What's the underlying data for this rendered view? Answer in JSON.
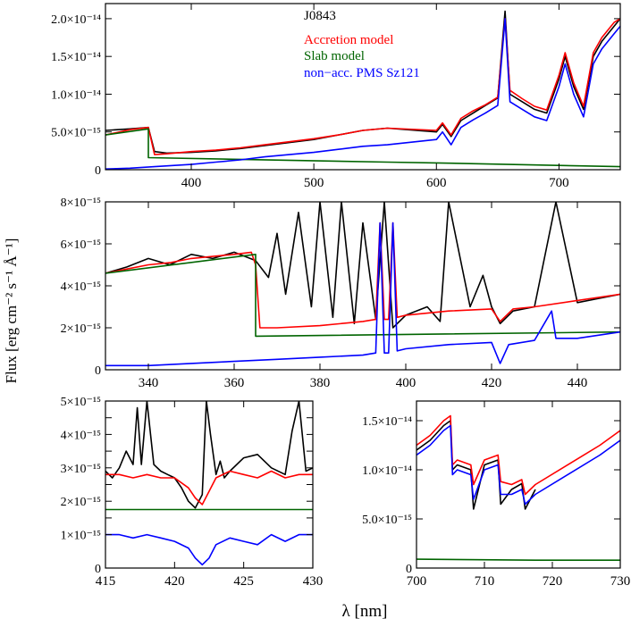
{
  "figure": {
    "ylabel": "Flux [erg cm⁻² s⁻¹ Å⁻¹]",
    "xlabel": "λ [nm]"
  },
  "legend": {
    "entries": [
      {
        "label": "J0843",
        "color": "#000000"
      },
      {
        "label": "Accretion model",
        "color": "#ff0000"
      },
      {
        "label": "Slab model",
        "color": "#006400"
      },
      {
        "label": "non−acc. PMS Sz121",
        "color": "#0000ff"
      }
    ]
  },
  "colors": {
    "observed": "#000000",
    "accretion": "#ff0000",
    "slab": "#006400",
    "template": "#0000ff"
  },
  "chart_data": [
    {
      "type": "line",
      "xlim": [
        330,
        750
      ],
      "ylim": [
        0,
        2.2e-14
      ],
      "xticks": [
        400,
        500,
        600,
        700
      ],
      "xtick_labels": [
        "400",
        "500",
        "600",
        "700"
      ],
      "yticks": [
        0,
        5e-15,
        1e-14,
        1.5e-14,
        2e-14
      ],
      "ytick_labels": [
        "0",
        "5.0×10⁻¹⁵",
        "1.0×10⁻¹⁴",
        "1.5×10⁻¹⁴",
        "2.0×10⁻¹⁴"
      ],
      "series": [
        {
          "name": "J0843",
          "x": [
            330,
            350,
            365,
            370,
            380,
            400,
            420,
            440,
            460,
            480,
            500,
            520,
            540,
            560,
            600,
            605,
            612,
            620,
            630,
            640,
            650,
            656,
            660,
            670,
            680,
            690,
            700,
            705,
            712,
            720,
            728,
            735,
            745,
            750
          ],
          "y": [
            5.2e-15,
            5.4e-15,
            5.6e-15,
            2.4e-15,
            2.2e-15,
            2.3e-15,
            2.5e-15,
            2.8e-15,
            3.2e-15,
            3.6e-15,
            4e-15,
            4.6e-15,
            5.2e-15,
            5.5e-15,
            5e-15,
            6e-15,
            4.4e-15,
            6.5e-15,
            7.5e-15,
            8.5e-15,
            9.5e-15,
            2.1e-14,
            1e-14,
            9e-15,
            8e-15,
            7.5e-15,
            1.2e-14,
            1.5e-14,
            1.1e-14,
            8e-15,
            1.5e-14,
            1.7e-14,
            1.9e-14,
            2e-14
          ]
        },
        {
          "name": "Accretion model",
          "x": [
            330,
            350,
            365,
            370,
            380,
            400,
            420,
            440,
            460,
            480,
            500,
            520,
            540,
            560,
            600,
            605,
            612,
            620,
            630,
            640,
            650,
            656,
            660,
            670,
            680,
            690,
            700,
            705,
            712,
            720,
            728,
            735,
            745,
            750
          ],
          "y": [
            4.6e-15,
            5.3e-15,
            5.6e-15,
            2e-15,
            2.1e-15,
            2.4e-15,
            2.6e-15,
            2.9e-15,
            3.3e-15,
            3.7e-15,
            4.1e-15,
            4.6e-15,
            5.2e-15,
            5.5e-15,
            5.2e-15,
            6.2e-15,
            4.6e-15,
            6.8e-15,
            7.8e-15,
            8.6e-15,
            9.6e-15,
            2e-14,
            1.05e-14,
            9.4e-15,
            8.4e-15,
            7.9e-15,
            1.25e-14,
            1.55e-14,
            1.15e-14,
            8.4e-15,
            1.55e-14,
            1.75e-14,
            1.95e-14,
            2e-14
          ]
        },
        {
          "name": "Slab model",
          "x": [
            330,
            365,
            365,
            560,
            600,
            750
          ],
          "y": [
            4.6e-15,
            5.4e-15,
            1.6e-15,
            1e-15,
            9e-16,
            4e-16
          ]
        },
        {
          "name": "non−acc. PMS Sz121",
          "x": [
            330,
            350,
            370,
            400,
            420,
            440,
            460,
            480,
            500,
            520,
            540,
            560,
            600,
            605,
            612,
            620,
            630,
            640,
            650,
            656,
            660,
            670,
            680,
            690,
            700,
            705,
            712,
            720,
            728,
            735,
            745,
            750
          ],
          "y": [
            1e-16,
            2e-16,
            4e-16,
            7e-16,
            1e-15,
            1.3e-15,
            1.7e-15,
            2e-15,
            2.3e-15,
            2.7e-15,
            3.1e-15,
            3.3e-15,
            4e-15,
            5e-15,
            3.3e-15,
            5.6e-15,
            6.6e-15,
            7.5e-15,
            8.5e-15,
            2e-14,
            9e-15,
            8e-15,
            7e-15,
            6.5e-15,
            1.1e-14,
            1.4e-14,
            1e-14,
            7e-15,
            1.4e-14,
            1.6e-14,
            1.8e-14,
            1.9e-14
          ]
        }
      ]
    },
    {
      "type": "line",
      "xlim": [
        330,
        450
      ],
      "ylim": [
        0,
        8e-15
      ],
      "xticks": [
        340,
        360,
        380,
        400,
        420,
        440
      ],
      "xtick_labels": [
        "340",
        "360",
        "380",
        "400",
        "420",
        "440"
      ],
      "yticks": [
        0,
        2e-15,
        4e-15,
        6e-15,
        8e-15
      ],
      "ytick_labels": [
        "0",
        "2×10⁻¹⁵",
        "4×10⁻¹⁵",
        "6×10⁻¹⁵",
        "8×10⁻¹⁵"
      ],
      "series": [
        {
          "name": "J0843",
          "x": [
            330,
            335,
            340,
            345,
            350,
            355,
            360,
            365,
            368,
            370,
            372,
            375,
            378,
            380,
            383,
            385,
            388,
            390,
            393,
            395,
            397,
            400,
            405,
            408,
            410,
            415,
            418,
            420,
            422,
            425,
            430,
            435,
            440,
            445,
            450
          ],
          "y": [
            4.6e-15,
            4.9e-15,
            5.3e-15,
            5e-15,
            5.5e-15,
            5.3e-15,
            5.6e-15,
            5.2e-15,
            4.4e-15,
            6.5e-15,
            3.6e-15,
            7.5e-15,
            3e-15,
            8e-15,
            2.5e-15,
            8e-15,
            2.2e-15,
            7e-15,
            2.4e-15,
            8e-15,
            2e-15,
            2.6e-15,
            3e-15,
            2.3e-15,
            8e-15,
            3e-15,
            4.5e-15,
            3e-15,
            2.2e-15,
            2.8e-15,
            3e-15,
            8e-15,
            3.2e-15,
            3.4e-15,
            3.6e-15
          ]
        },
        {
          "name": "Accretion model",
          "x": [
            330,
            335,
            340,
            345,
            350,
            355,
            360,
            364,
            365,
            366,
            370,
            380,
            390,
            393,
            394,
            395,
            396,
            397,
            398,
            400,
            410,
            420,
            422,
            425,
            430,
            440,
            450
          ],
          "y": [
            4.6e-15,
            4.8e-15,
            5e-15,
            5.1e-15,
            5.3e-15,
            5.4e-15,
            5.5e-15,
            5.6e-15,
            5e-15,
            2e-15,
            2e-15,
            2.1e-15,
            2.3e-15,
            2.4e-15,
            7e-15,
            2.4e-15,
            2.4e-15,
            7e-15,
            2.5e-15,
            2.6e-15,
            2.8e-15,
            2.9e-15,
            2.3e-15,
            2.9e-15,
            3e-15,
            3.3e-15,
            3.6e-15
          ]
        },
        {
          "name": "Slab model",
          "x": [
            330,
            365,
            365,
            450
          ],
          "y": [
            4.6e-15,
            5.5e-15,
            1.6e-15,
            1.8e-15
          ]
        },
        {
          "name": "non−acc. PMS Sz121",
          "x": [
            330,
            340,
            350,
            360,
            370,
            380,
            390,
            393,
            394,
            395,
            396,
            397,
            398,
            400,
            410,
            420,
            422,
            424,
            430,
            434,
            435,
            440,
            450
          ],
          "y": [
            2e-16,
            2e-16,
            3e-16,
            4e-16,
            5e-16,
            6e-16,
            7e-16,
            8e-16,
            7e-15,
            8e-16,
            8e-16,
            7e-15,
            9e-16,
            1e-15,
            1.2e-15,
            1.3e-15,
            3e-16,
            1.2e-15,
            1.4e-15,
            2.8e-15,
            1.5e-15,
            1.5e-15,
            1.8e-15
          ]
        }
      ]
    },
    {
      "type": "line",
      "xlim": [
        415,
        430
      ],
      "ylim": [
        0,
        5e-15
      ],
      "xticks": [
        415,
        420,
        425,
        430
      ],
      "xtick_labels": [
        "415",
        "420",
        "425",
        "430"
      ],
      "yticks": [
        0,
        1e-15,
        1.5e-15,
        2e-15,
        2.5e-15,
        3e-15,
        3.5e-15,
        4e-15,
        4.5e-15,
        5e-15
      ],
      "ytick_labels": [
        "0",
        "1×10⁻¹⁵",
        "",
        "2×10⁻¹⁵",
        "",
        "3×10⁻¹⁵",
        "",
        "4×10⁻¹⁵",
        "",
        "5×10⁻¹⁵"
      ],
      "series": [
        {
          "name": "J0843",
          "x": [
            415,
            415.5,
            416,
            416.5,
            417,
            417.3,
            417.6,
            418,
            418.5,
            419,
            419.5,
            420,
            420.5,
            421,
            421.5,
            422,
            422.3,
            422.6,
            423,
            423.3,
            423.6,
            424,
            425,
            426,
            427,
            428,
            428.5,
            429,
            429.5,
            430
          ],
          "y": [
            2.9e-15,
            2.7e-15,
            3e-15,
            3.5e-15,
            3.1e-15,
            4.8e-15,
            3.1e-15,
            5e-15,
            3.1e-15,
            2.9e-15,
            2.8e-15,
            2.7e-15,
            2.4e-15,
            2e-15,
            1.8e-15,
            2.2e-15,
            5e-15,
            4e-15,
            2.8e-15,
            3.2e-15,
            2.7e-15,
            2.9e-15,
            3.3e-15,
            3.4e-15,
            3e-15,
            2.8e-15,
            4.1e-15,
            5e-15,
            2.9e-15,
            3e-15
          ]
        },
        {
          "name": "Accretion model",
          "x": [
            415,
            416,
            417,
            418,
            419,
            420,
            421,
            421.5,
            422,
            422.5,
            423,
            424,
            425,
            426,
            427,
            428,
            429,
            430
          ],
          "y": [
            2.8e-15,
            2.8e-15,
            2.7e-15,
            2.8e-15,
            2.7e-15,
            2.7e-15,
            2.4e-15,
            2.1e-15,
            1.9e-15,
            2.3e-15,
            2.7e-15,
            2.9e-15,
            2.8e-15,
            2.7e-15,
            2.9e-15,
            2.7e-15,
            2.8e-15,
            2.8e-15
          ]
        },
        {
          "name": "Slab model",
          "x": [
            415,
            430
          ],
          "y": [
            1.75e-15,
            1.75e-15
          ]
        },
        {
          "name": "non−acc. PMS Sz121",
          "x": [
            415,
            416,
            417,
            418,
            419,
            420,
            421,
            421.5,
            422,
            422.5,
            423,
            424,
            425,
            426,
            427,
            428,
            429,
            430
          ],
          "y": [
            1e-15,
            1e-15,
            9e-16,
            1e-15,
            9e-16,
            8e-16,
            6e-16,
            3e-16,
            1e-16,
            3e-16,
            7e-16,
            9e-16,
            8e-16,
            7e-16,
            1e-15,
            8e-16,
            1e-15,
            1e-15
          ]
        }
      ]
    },
    {
      "type": "line",
      "xlim": [
        700,
        730
      ],
      "ylim": [
        0,
        1.7e-14
      ],
      "xticks": [
        700,
        710,
        720,
        730
      ],
      "xtick_labels": [
        "700",
        "710",
        "720",
        "730"
      ],
      "yticks": [
        0,
        5e-15,
        1e-14,
        1.5e-14
      ],
      "ytick_labels": [
        "0",
        "5.0×10⁻¹⁵",
        "1.0×10⁻¹⁴",
        "1.5×10⁻¹⁴"
      ],
      "series": [
        {
          "name": "J0843",
          "x": [
            700,
            702,
            704,
            705,
            705.3,
            706,
            708,
            708.4,
            710,
            712,
            712.4,
            714,
            715.5,
            716,
            717.5
          ],
          "y": [
            1.2e-14,
            1.3e-14,
            1.45e-14,
            1.5e-14,
            1e-14,
            1.05e-14,
            1e-14,
            6e-15,
            1.05e-14,
            1.1e-14,
            6.5e-15,
            8e-15,
            8.6e-15,
            6e-15,
            8e-15
          ]
        },
        {
          "name": "Accretion model",
          "x": [
            700,
            702,
            704,
            705,
            705.3,
            706,
            708,
            708.4,
            710,
            712,
            712.4,
            714,
            715.5,
            716,
            717.5,
            727,
            728,
            729,
            730
          ],
          "y": [
            1.25e-14,
            1.35e-14,
            1.5e-14,
            1.55e-14,
            1.05e-14,
            1.1e-14,
            1.05e-14,
            8.5e-15,
            1.1e-14,
            1.15e-14,
            8.8e-15,
            8.5e-15,
            9e-15,
            7.5e-15,
            8.5e-15,
            1.25e-14,
            1.3e-14,
            1.35e-14,
            1.4e-14
          ]
        },
        {
          "name": "Slab model",
          "x": [
            700,
            717.5,
            727,
            730
          ],
          "y": [
            9e-16,
            8e-16,
            8e-16,
            8e-16
          ]
        },
        {
          "name": "non−acc. PMS Sz121",
          "x": [
            700,
            702,
            704,
            705,
            705.3,
            706,
            708,
            708.4,
            710,
            712,
            712.4,
            714,
            715.5,
            716,
            717.5,
            727,
            728,
            729,
            730
          ],
          "y": [
            1.15e-14,
            1.25e-14,
            1.4e-14,
            1.45e-14,
            9.5e-15,
            1e-14,
            9.5e-15,
            7e-15,
            1e-14,
            1.05e-14,
            7.5e-15,
            7.5e-15,
            8e-15,
            6.5e-15,
            7.5e-15,
            1.15e-14,
            1.2e-14,
            1.25e-14,
            1.3e-14
          ]
        }
      ]
    }
  ]
}
